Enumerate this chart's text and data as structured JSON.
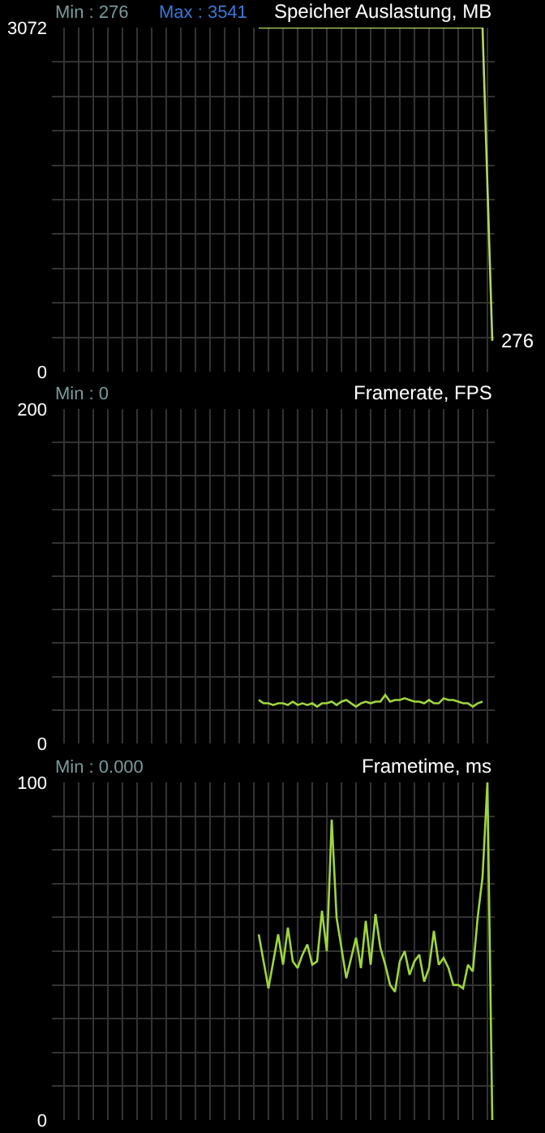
{
  "chart_data": [
    {
      "type": "line",
      "title": "Speicher Auslastung, MB",
      "annotations": [
        "Min : 276",
        "Max : 3541",
        "276"
      ],
      "categories": [
        null,
        null,
        null,
        null,
        null,
        null,
        null,
        null,
        null,
        null,
        null,
        null,
        null,
        null,
        null,
        null,
        null,
        null,
        null,
        null,
        null,
        null,
        null,
        null,
        null,
        null,
        null,
        null,
        null,
        null,
        null,
        null,
        null,
        null,
        null,
        null,
        null,
        null,
        null,
        null,
        null,
        null,
        null,
        null,
        null,
        null,
        null,
        null,
        null,
        null,
        null,
        null,
        null,
        null,
        null,
        null,
        null,
        null,
        null,
        null,
        null,
        null,
        null,
        null,
        null,
        null,
        null,
        null,
        null,
        null,
        null,
        null,
        null,
        null,
        null,
        null,
        null,
        null,
        null,
        null,
        null,
        null,
        null,
        null,
        null,
        null,
        null,
        null,
        null,
        null,
        null
      ],
      "series": [
        {
          "color": "#b4d860",
          "values": [
            null,
            null,
            null,
            null,
            null,
            null,
            null,
            null,
            null,
            null,
            null,
            null,
            null,
            null,
            null,
            null,
            null,
            null,
            null,
            null,
            null,
            null,
            null,
            null,
            null,
            null,
            null,
            null,
            null,
            null,
            null,
            null,
            null,
            null,
            null,
            null,
            null,
            null,
            null,
            null,
            null,
            null,
            3072,
            3072,
            3072,
            3072,
            3072,
            3072,
            3072,
            3072,
            3072,
            3072,
            3072,
            3072,
            3072,
            3072,
            3072,
            3072,
            3072,
            3072,
            3072,
            3072,
            3072,
            3072,
            3072,
            3072,
            3072,
            3072,
            3072,
            3072,
            3072,
            3072,
            3072,
            3072,
            3072,
            3072,
            3072,
            3072,
            3072,
            3072,
            3072,
            3072,
            3072,
            3072,
            3072,
            3072,
            3072,
            3072,
            3072,
            1666,
            276
          ]
        }
      ],
      "ylim": [
        0,
        3072
      ],
      "yticks": [
        0,
        {
          "value": 307.2,
          "label": null
        },
        {
          "value": 614.4,
          "label": null
        },
        {
          "value": 921.6,
          "label": null
        },
        {
          "value": 1228.8,
          "label": null
        },
        {
          "value": 1536,
          "label": null
        },
        {
          "value": 1843.2,
          "label": null
        },
        {
          "value": 2150.4,
          "label": null
        },
        {
          "value": 2457.6,
          "label": null
        },
        {
          "value": 2764.8,
          "label": null
        },
        3072
      ],
      "grid": true,
      "tick_labels": "y",
      "marker": "none",
      "line_style": "solid"
    },
    {
      "type": "line",
      "title": "Framerate, FPS",
      "annotations": [
        "Min : 0"
      ],
      "categories": [
        null,
        null,
        null,
        null,
        null,
        null,
        null,
        null,
        null,
        null,
        null,
        null,
        null,
        null,
        null,
        null,
        null,
        null,
        null,
        null,
        null,
        null,
        null,
        null,
        null,
        null,
        null,
        null,
        null,
        null,
        null,
        null,
        null,
        null,
        null,
        null,
        null,
        null,
        null,
        null,
        null,
        null,
        null,
        null,
        null,
        null,
        null,
        null,
        null,
        null,
        null,
        null,
        null,
        null,
        null,
        null,
        null,
        null,
        null,
        null,
        null,
        null,
        null,
        null,
        null,
        null,
        null,
        null,
        null,
        null,
        null,
        null,
        null,
        null,
        null,
        null,
        null,
        null,
        null,
        null,
        null,
        null,
        null,
        null,
        null,
        null,
        null,
        null,
        null,
        null,
        null
      ],
      "series": [
        {
          "color": "#9fd63c",
          "values": [
            null,
            null,
            null,
            null,
            null,
            null,
            null,
            null,
            null,
            null,
            null,
            null,
            null,
            null,
            null,
            null,
            null,
            null,
            null,
            null,
            null,
            null,
            null,
            null,
            null,
            null,
            null,
            null,
            null,
            null,
            null,
            null,
            null,
            null,
            null,
            null,
            null,
            null,
            null,
            null,
            null,
            null,
            26,
            24,
            24,
            23,
            24,
            24,
            23,
            25,
            23,
            24,
            23,
            24,
            22,
            24,
            24,
            25,
            23,
            25,
            26,
            24,
            22,
            24,
            25,
            24,
            25,
            25,
            29,
            25,
            26,
            26,
            27,
            26,
            25,
            25,
            24,
            26,
            24,
            24,
            27,
            26,
            26,
            25,
            24,
            24,
            22,
            24,
            25,
            null,
            null
          ]
        }
      ],
      "ylim": [
        0,
        200
      ],
      "yticks": [
        0,
        {
          "value": 20,
          "label": null
        },
        {
          "value": 40,
          "label": null
        },
        {
          "value": 60,
          "label": null
        },
        {
          "value": 80,
          "label": null
        },
        {
          "value": 100,
          "label": null
        },
        {
          "value": 120,
          "label": null
        },
        {
          "value": 140,
          "label": null
        },
        {
          "value": 160,
          "label": null
        },
        {
          "value": 180,
          "label": null
        },
        200
      ],
      "grid": true,
      "tick_labels": "y",
      "marker": "none",
      "line_style": "solid"
    },
    {
      "type": "line",
      "title": "Frametime, ms",
      "annotations": [
        "Min : 0.000"
      ],
      "categories": [
        null,
        null,
        null,
        null,
        null,
        null,
        null,
        null,
        null,
        null,
        null,
        null,
        null,
        null,
        null,
        null,
        null,
        null,
        null,
        null,
        null,
        null,
        null,
        null,
        null,
        null,
        null,
        null,
        null,
        null,
        null,
        null,
        null,
        null,
        null,
        null,
        null,
        null,
        null,
        null,
        null,
        null,
        null,
        null,
        null,
        null,
        null,
        null,
        null,
        null,
        null,
        null,
        null,
        null,
        null,
        null,
        null,
        null,
        null,
        null,
        null,
        null,
        null,
        null,
        null,
        null,
        null,
        null,
        null,
        null,
        null,
        null,
        null,
        null,
        null,
        null,
        null,
        null,
        null,
        null,
        null,
        null,
        null,
        null,
        null,
        null,
        null,
        null,
        null,
        null,
        null
      ],
      "series": [
        {
          "color": "#9fd63c",
          "values": [
            null,
            null,
            null,
            null,
            null,
            null,
            null,
            null,
            null,
            null,
            null,
            null,
            null,
            null,
            null,
            null,
            null,
            null,
            null,
            null,
            null,
            null,
            null,
            null,
            null,
            null,
            null,
            null,
            null,
            null,
            null,
            null,
            null,
            null,
            null,
            null,
            null,
            null,
            null,
            null,
            null,
            null,
            55,
            47,
            39,
            47,
            55,
            46,
            57,
            47,
            45,
            49,
            52,
            46,
            47,
            62,
            50,
            89,
            60,
            51,
            42,
            48,
            54,
            45,
            59,
            46,
            61,
            51,
            46,
            40,
            38,
            47,
            50,
            43,
            47,
            49,
            41,
            45,
            56,
            46,
            48,
            45,
            40,
            40,
            39,
            46,
            44,
            60,
            72,
            100,
            0
          ]
        }
      ],
      "ylim": [
        0,
        100
      ],
      "yticks": [
        0,
        {
          "value": 10,
          "label": null
        },
        {
          "value": 20,
          "label": null
        },
        {
          "value": 30,
          "label": null
        },
        {
          "value": 40,
          "label": null
        },
        {
          "value": 50,
          "label": null
        },
        {
          "value": 60,
          "label": null
        },
        {
          "value": 70,
          "label": null
        },
        {
          "value": 80,
          "label": null
        },
        {
          "value": 90,
          "label": null
        },
        100
      ],
      "grid": true,
      "tick_labels": "y",
      "marker": "none",
      "line_style": "solid"
    }
  ]
}
